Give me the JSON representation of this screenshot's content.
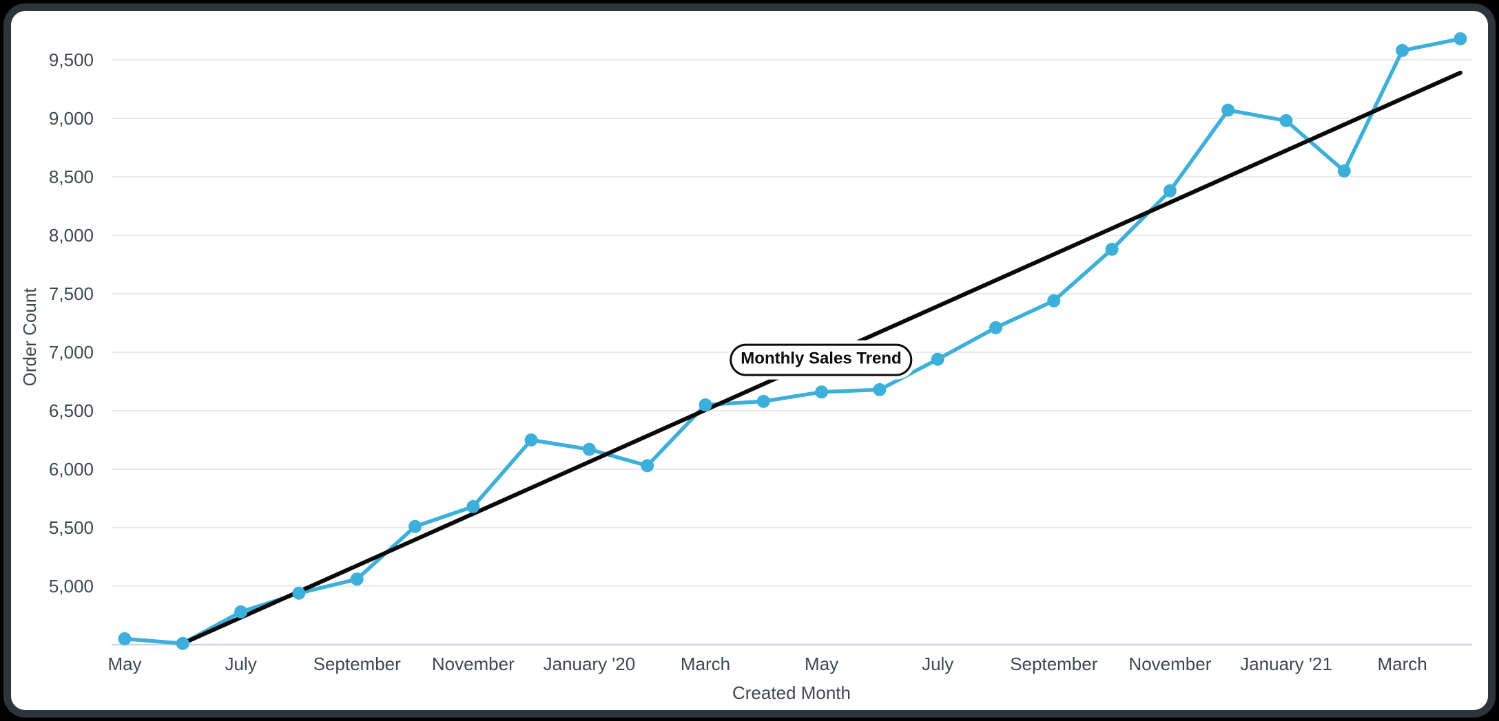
{
  "chart_data": {
    "type": "line",
    "title": "Monthly Sales Trend",
    "xlabel": "Created Month",
    "ylabel": "Order Count",
    "grid": "horizontal",
    "legend": "none",
    "ylim": [
      4500,
      9750
    ],
    "x_categories": [
      "May 2019",
      "June 2019",
      "July 2019",
      "August 2019",
      "September 2019",
      "October 2019",
      "November 2019",
      "December 2019",
      "January 2020",
      "February 2020",
      "March 2020",
      "April 2020",
      "May 2020",
      "June 2020",
      "July 2020",
      "August 2020",
      "September 2020",
      "October 2020",
      "November 2020",
      "December 2020",
      "January 2021",
      "February 2021",
      "March 2021",
      "April 2021"
    ],
    "x_ticks": [
      {
        "index": 0,
        "label": "May"
      },
      {
        "index": 2,
        "label": "July"
      },
      {
        "index": 4,
        "label": "September"
      },
      {
        "index": 6,
        "label": "November"
      },
      {
        "index": 8,
        "label": "January '20"
      },
      {
        "index": 10,
        "label": "March"
      },
      {
        "index": 12,
        "label": "May"
      },
      {
        "index": 14,
        "label": "July"
      },
      {
        "index": 16,
        "label": "September"
      },
      {
        "index": 18,
        "label": "November"
      },
      {
        "index": 20,
        "label": "January '21"
      },
      {
        "index": 22,
        "label": "March"
      }
    ],
    "y_ticks": [
      {
        "value": 9500,
        "label": "9,500"
      },
      {
        "value": 9000,
        "label": "9,000"
      },
      {
        "value": 8500,
        "label": "8,500"
      },
      {
        "value": 8000,
        "label": "8,000"
      },
      {
        "value": 7500,
        "label": "7,500"
      },
      {
        "value": 7000,
        "label": "7,000"
      },
      {
        "value": 6500,
        "label": "6,500"
      },
      {
        "value": 6000,
        "label": "6,000"
      },
      {
        "value": 5500,
        "label": "5,500"
      },
      {
        "value": 5000,
        "label": "5,000"
      }
    ],
    "series": [
      {
        "name": "Order Count",
        "color": "#3cb0da",
        "values": [
          4550,
          4510,
          4780,
          4940,
          5060,
          5510,
          5680,
          6250,
          6170,
          6030,
          6550,
          6580,
          6660,
          6680,
          6940,
          7210,
          7440,
          7880,
          8380,
          9070,
          8980,
          8550,
          9580,
          9680
        ]
      }
    ],
    "trend_line": {
      "name": "Monthly Sales Trend",
      "color": "#0a0a0a",
      "start": {
        "month_index": 1,
        "value": 4510
      },
      "end": {
        "month_index": 23,
        "value": 9390
      }
    }
  },
  "colors": {
    "series_blue": "#3cb0da",
    "trend_black": "#0a0a0a",
    "gridline": "#e9e9e9",
    "axis_baseline": "#ccd2e8",
    "label_text": "#3f474f",
    "card_background": "#ffffff",
    "frame_border": "#2c353a",
    "page_background": "#000000"
  }
}
